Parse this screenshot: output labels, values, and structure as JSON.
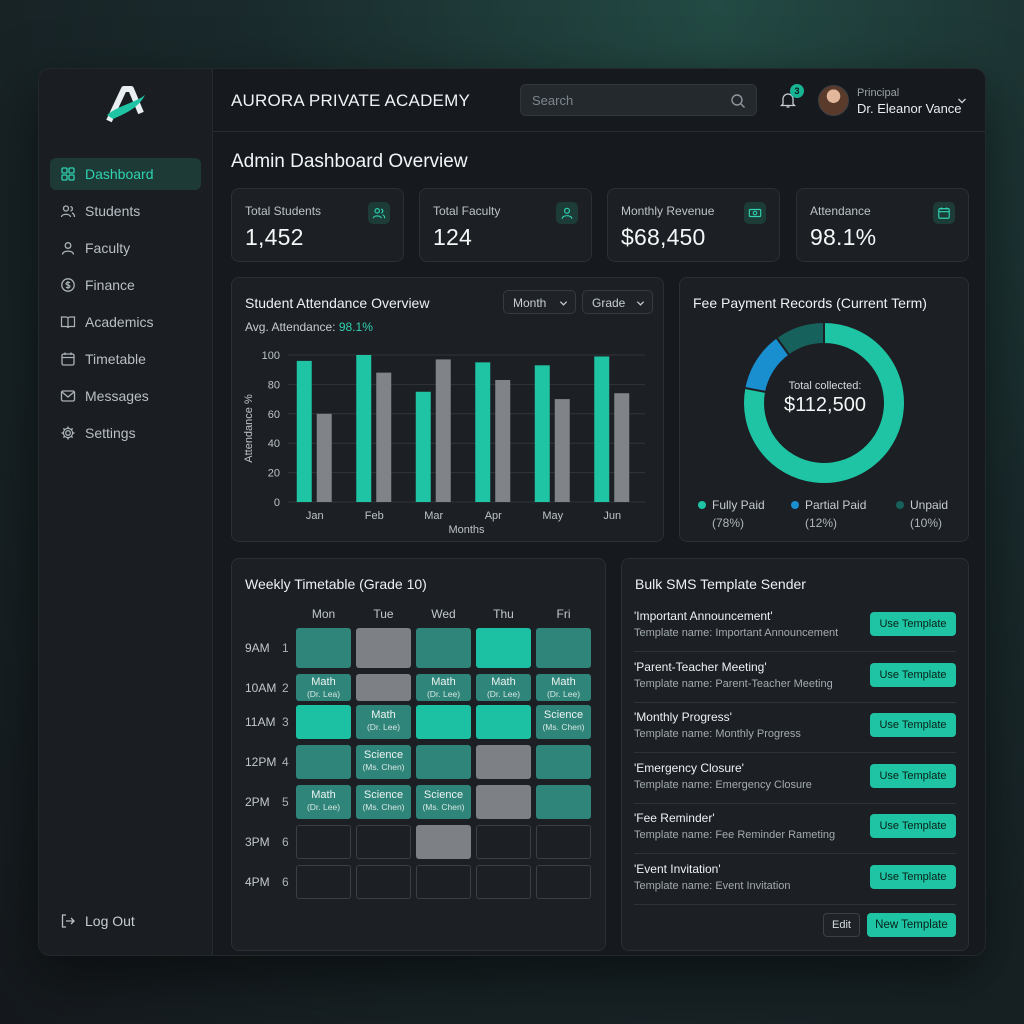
{
  "app": {
    "name": "AURORA PRIVATE ACADEMY"
  },
  "sidebar": {
    "items": [
      {
        "label": "Dashboard",
        "icon": "dashboard-icon",
        "active": true
      },
      {
        "label": "Students",
        "icon": "users-icon"
      },
      {
        "label": "Faculty",
        "icon": "faculty-icon"
      },
      {
        "label": "Finance",
        "icon": "dollar-icon"
      },
      {
        "label": "Academics",
        "icon": "book-icon"
      },
      {
        "label": "Timetable",
        "icon": "calendar-icon"
      },
      {
        "label": "Messages",
        "icon": "mail-icon"
      },
      {
        "label": "Settings",
        "icon": "gear-icon"
      }
    ],
    "logout": "Log Out"
  },
  "topbar": {
    "search_placeholder": "Search",
    "notification_count": "3",
    "user_role": "Principal",
    "user_name": "Dr. Eleanor Vance"
  },
  "page_title": "Admin Dashboard Overview",
  "stats": [
    {
      "label": "Total Students",
      "value": "1,452",
      "icon": "users-icon"
    },
    {
      "label": "Total Faculty",
      "value": "124",
      "icon": "faculty-icon"
    },
    {
      "label": "Monthly Revenue",
      "value": "$68,450",
      "icon": "cash-icon"
    },
    {
      "label": "Attendance",
      "value": "98.1%",
      "icon": "calendar-icon"
    }
  ],
  "attendance": {
    "title": "Student Attendance Overview",
    "filter_month": "Month",
    "filter_grade": "Grade",
    "avg_label": "Avg. Attendance:",
    "avg_value": "98.1%"
  },
  "fees": {
    "title": "Fee Payment Records (Current Term)",
    "center_label": "Total collected:",
    "center_value": "$112,500",
    "legend": [
      {
        "label": "Fully Paid",
        "pct": "(78%)",
        "color": "#1ec4a3"
      },
      {
        "label": "Partial Paid",
        "pct": "(12%)",
        "color": "#1a8fd0"
      },
      {
        "label": "Unpaid",
        "pct": "(10%)",
        "color": "#17615c"
      }
    ]
  },
  "timetable": {
    "title": "Weekly Timetable (Grade 10)",
    "days": [
      "Mon",
      "Tue",
      "Wed",
      "Thu",
      "Fri"
    ],
    "times": [
      {
        "time": "9AM",
        "period": "1"
      },
      {
        "time": "10AM",
        "period": "2"
      },
      {
        "time": "11AM",
        "period": "3"
      },
      {
        "time": "12PM",
        "period": "4"
      },
      {
        "time": "2PM",
        "period": "5"
      },
      {
        "time": "3PM",
        "period": "6"
      },
      {
        "time": "4PM",
        "period": "6"
      }
    ],
    "cells": [
      [
        {
          "c": "teal1"
        },
        {
          "c": "gray"
        },
        {
          "c": "teal1"
        },
        {
          "c": "teal2"
        },
        {
          "c": "teal1"
        }
      ],
      [
        {
          "c": "teal1",
          "s": "Math",
          "t": "(Dr. Lea)"
        },
        {
          "c": "gray"
        },
        {
          "c": "teal1",
          "s": "Math",
          "t": "(Dr. Lee)"
        },
        {
          "c": "teal1",
          "s": "Math",
          "t": "(Dr. Lee)"
        },
        {
          "c": "teal1",
          "s": "Math",
          "t": "(Dr. Lee)"
        }
      ],
      [
        {
          "c": "teal2"
        },
        {
          "c": "teal1",
          "s": "Math",
          "t": "(Dr. Lee)"
        },
        {
          "c": "teal2"
        },
        {
          "c": "teal2"
        },
        {
          "c": "teal1",
          "s": "Science",
          "t": "(Ms. Chen)"
        }
      ],
      [
        {
          "c": "teal1"
        },
        {
          "c": "teal1",
          "s": "Science",
          "t": "(Ms. Chen)"
        },
        {
          "c": "teal1"
        },
        {
          "c": "gray"
        },
        {
          "c": "teal1"
        }
      ],
      [
        {
          "c": "teal1",
          "s": "Math",
          "t": "(Dr. Lee)"
        },
        {
          "c": "teal1",
          "s": "Science",
          "t": "(Ms. Chen)"
        },
        {
          "c": "teal1",
          "s": "Science",
          "t": "(Ms. Chen)"
        },
        {
          "c": "gray"
        },
        {
          "c": "teal1"
        }
      ],
      [
        {
          "c": "empty"
        },
        {
          "c": "empty"
        },
        {
          "c": "gray"
        },
        {
          "c": "empty"
        },
        {
          "c": "empty"
        }
      ],
      [
        {
          "c": "empty"
        },
        {
          "c": "empty"
        },
        {
          "c": "empty"
        },
        {
          "c": "empty"
        },
        {
          "c": "empty"
        }
      ]
    ]
  },
  "sms": {
    "title": "Bulk SMS Template Sender",
    "use_label": "Use Template",
    "templates": [
      {
        "title": "'Important Announcement'",
        "name": "Template name: Important Announcement"
      },
      {
        "title": "'Parent-Teacher Meeting'",
        "name": "Template name: Parent-Teacher Meeting"
      },
      {
        "title": "'Monthly Progress'",
        "name": "Template name: Monthly Progress"
      },
      {
        "title": "'Emergency Closure'",
        "name": "Template name: Emergency Closure"
      },
      {
        "title": "'Fee Reminder'",
        "name": "Template name: Fee Reminder Rameting"
      },
      {
        "title": "'Event Invitation'",
        "name": "Template name: Event Invitation"
      }
    ],
    "edit_label": "Edit",
    "new_label": "New Template"
  },
  "chart_data": [
    {
      "type": "bar",
      "categories": [
        "Jan",
        "Feb",
        "Mar",
        "Apr",
        "May",
        "Jun"
      ],
      "series": [
        {
          "values": [
            96,
            100,
            75,
            95,
            93,
            99
          ],
          "color": "#1ec4a3"
        },
        {
          "values": [
            60,
            88,
            97,
            83,
            70,
            74
          ],
          "color": "#808488"
        }
      ],
      "xlabel": "Months",
      "ylabel": "Attendance %",
      "ylim": [
        0,
        100
      ],
      "yticks": [
        0,
        20,
        40,
        60,
        80,
        100
      ],
      "grid": true
    },
    {
      "type": "pie",
      "donut": true,
      "categories": [
        "Fully Paid",
        "Partial Paid",
        "Unpaid"
      ],
      "values": [
        78,
        12,
        10
      ],
      "colors": [
        "#1ec4a3",
        "#1a8fd0",
        "#17615c"
      ]
    }
  ]
}
